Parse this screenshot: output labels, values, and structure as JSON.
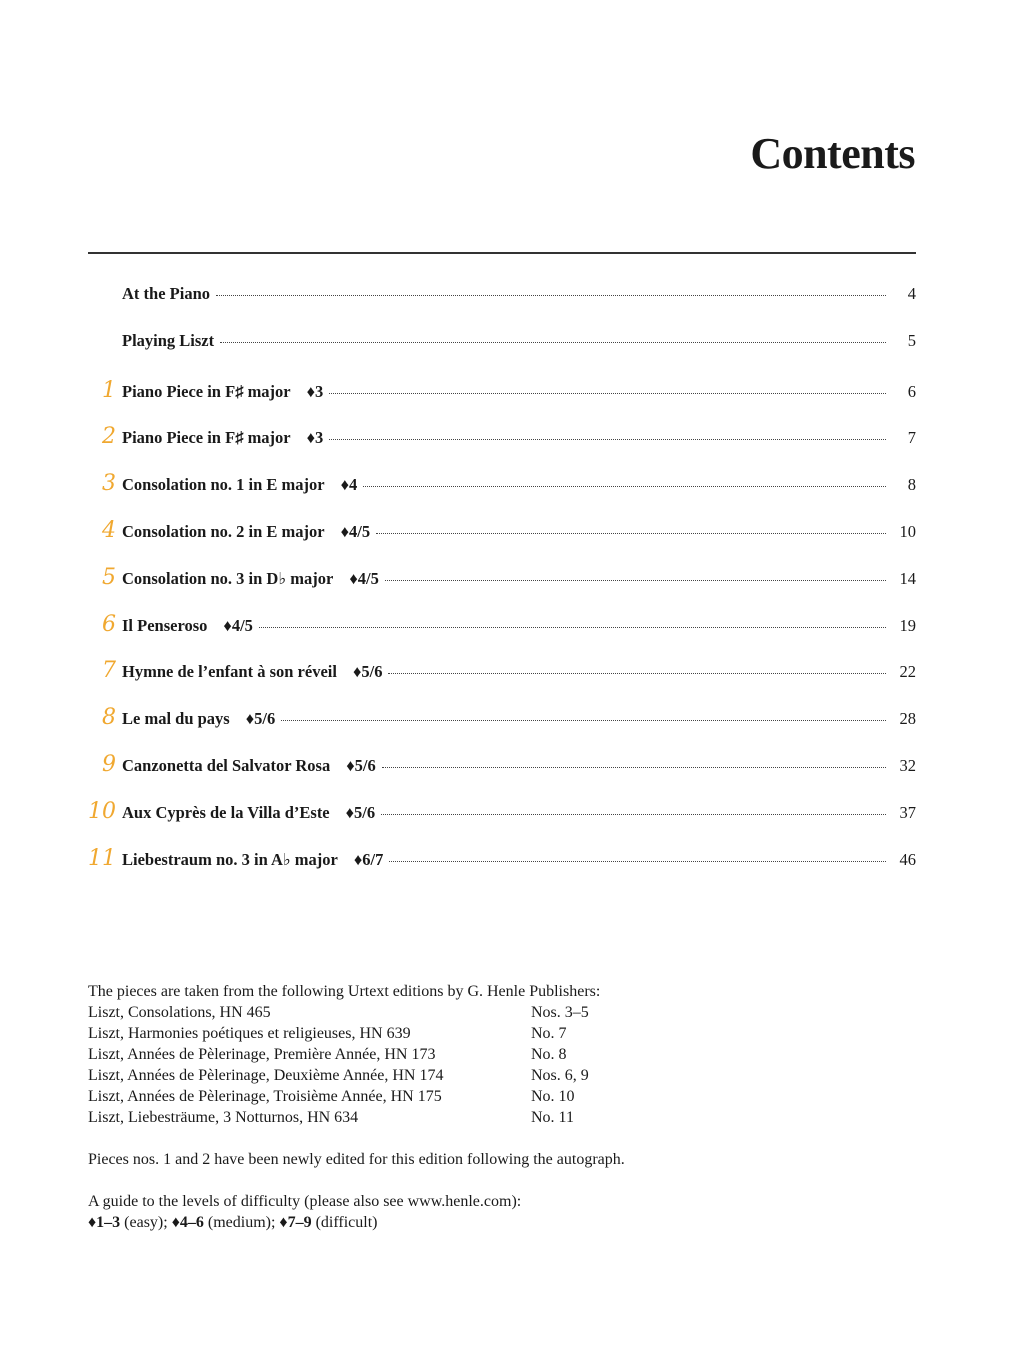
{
  "title": "Contents",
  "colors": {
    "number_accent": "#f0a830",
    "text": "#1a1a1a"
  },
  "entries": [
    {
      "number": "",
      "title": "At the Piano",
      "level": "",
      "page": "4"
    },
    {
      "number": "",
      "title": "Playing Liszt",
      "level": "",
      "page": "5"
    },
    {
      "number": "1",
      "title": "Piano Piece in F♯ major",
      "level": "♦3",
      "page": "6"
    },
    {
      "number": "2",
      "title": "Piano Piece in F♯ major",
      "level": "♦3",
      "page": "7"
    },
    {
      "number": "3",
      "title": "Consolation no. 1 in E major",
      "level": "♦4",
      "page": "8"
    },
    {
      "number": "4",
      "title": "Consolation no. 2 in E major",
      "level": "♦4/5",
      "page": "10"
    },
    {
      "number": "5",
      "title": "Consolation no. 3 in D♭ major",
      "level": "♦4/5",
      "page": "14"
    },
    {
      "number": "6",
      "title": "Il Penseroso",
      "level": "♦4/5",
      "page": "19"
    },
    {
      "number": "7",
      "title": "Hymne de l’enfant à son réveil",
      "level": "♦5/6",
      "page": "22"
    },
    {
      "number": "8",
      "title": "Le mal du pays",
      "level": "♦5/6",
      "page": "28"
    },
    {
      "number": "9",
      "title": "Canzonetta del Salvator Rosa",
      "level": "♦5/6",
      "page": "32"
    },
    {
      "number": "10",
      "title": "Aux Cyprès de la Villa d’Este",
      "level": "♦5/6",
      "page": "37"
    },
    {
      "number": "11",
      "title": "Liebestraum no. 3 in A♭ major",
      "level": "♦6/7",
      "page": "46"
    }
  ],
  "notes": {
    "intro": "The pieces are taken from the following Urtext editions by G. Henle Publishers:",
    "sources": [
      {
        "edition": "Liszt, Consolations, HN 465",
        "pieces": "Nos. 3–5"
      },
      {
        "edition": "Liszt, Harmonies poétiques et religieuses, HN 639",
        "pieces": "No. 7"
      },
      {
        "edition": "Liszt, Années de Pèlerinage, Première Année, HN 173",
        "pieces": "No. 8"
      },
      {
        "edition": "Liszt, Années de Pèlerinage, Deuxième Année, HN 174",
        "pieces": "Nos. 6, 9"
      },
      {
        "edition": "Liszt, Années de Pèlerinage, Troisième Année, HN 175",
        "pieces": "No. 10"
      },
      {
        "edition": "Liszt, Liebesträume, 3 Notturnos, HN 634",
        "pieces": "No. 11"
      }
    ],
    "new_edition": "Pieces nos. 1 and 2 have been newly edited for this edition following the autograph.",
    "guide": "A guide to the levels of difficulty (please also see www.henle.com):",
    "levels": [
      {
        "range": "♦1–3",
        "label": "(easy);"
      },
      {
        "range": "♦4–6",
        "label": "(medium);"
      },
      {
        "range": "♦7–9",
        "label": "(difficult)"
      }
    ]
  }
}
